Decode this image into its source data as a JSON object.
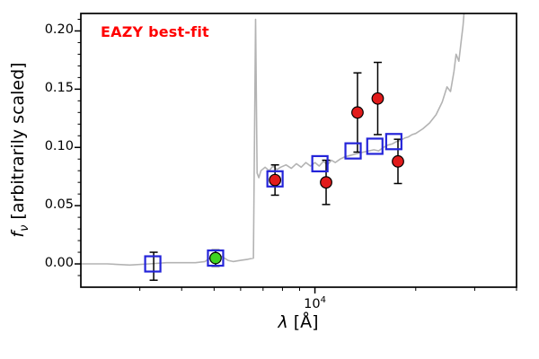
{
  "figure": {
    "annotation": "EAZY best-fit",
    "annotation_color": "#ff0000",
    "background": "#ffffff"
  },
  "axes": {
    "xlabel_symbol": "λ",
    "xlabel_rest": " [Å]",
    "ylabel_symbol": "f",
    "ylabel_sub": "ν",
    "ylabel_rest": " [arbitrarily scaled]",
    "x_major_tick_base": "10",
    "x_major_tick_exp": "4"
  },
  "chart_data": {
    "type": "line+scatter",
    "title": "",
    "xlabel": "lambda [Angstrom]",
    "ylabel": "f_nu [arbitrarily scaled]",
    "xscale": "log",
    "xlim": [
      2000,
      40000
    ],
    "ylim": [
      -0.02,
      0.215
    ],
    "grid": false,
    "legend": false,
    "y_major_ticks": [
      0,
      0.05,
      0.1,
      0.15,
      0.2
    ],
    "y_minor_step": 0.01,
    "x_major_ticks": [
      10000
    ],
    "x_minor_ticks": [
      3000,
      4000,
      5000,
      6000,
      7000,
      8000,
      9000,
      20000,
      30000,
      40000
    ],
    "series": [
      {
        "name": "EAZY best-fit template",
        "type": "line",
        "color": "#b3b3b3",
        "points": [
          [
            2000,
            0.0
          ],
          [
            2400,
            0.0
          ],
          [
            2800,
            -0.001
          ],
          [
            3200,
            0.0
          ],
          [
            3600,
            0.001
          ],
          [
            4000,
            0.001
          ],
          [
            4400,
            0.001
          ],
          [
            4700,
            0.002
          ],
          [
            4900,
            0.006
          ],
          [
            5100,
            0.008
          ],
          [
            5300,
            0.006
          ],
          [
            5500,
            0.003
          ],
          [
            5700,
            0.002
          ],
          [
            6000,
            0.003
          ],
          [
            6300,
            0.004
          ],
          [
            6550,
            0.005
          ],
          [
            6650,
            0.21
          ],
          [
            6720,
            0.078
          ],
          [
            6800,
            0.074
          ],
          [
            6900,
            0.08
          ],
          [
            7100,
            0.083
          ],
          [
            7300,
            0.08
          ],
          [
            7500,
            0.084
          ],
          [
            7700,
            0.081
          ],
          [
            7900,
            0.083
          ],
          [
            8200,
            0.085
          ],
          [
            8500,
            0.082
          ],
          [
            8800,
            0.086
          ],
          [
            9100,
            0.083
          ],
          [
            9400,
            0.087
          ],
          [
            9700,
            0.084
          ],
          [
            10000,
            0.087
          ],
          [
            10300,
            0.084
          ],
          [
            10600,
            0.088
          ],
          [
            10900,
            0.085
          ],
          [
            11200,
            0.089
          ],
          [
            11500,
            0.087
          ],
          [
            11900,
            0.09
          ],
          [
            12300,
            0.092
          ],
          [
            12700,
            0.093
          ],
          [
            13100,
            0.094
          ],
          [
            13500,
            0.095
          ],
          [
            14000,
            0.096
          ],
          [
            14500,
            0.097
          ],
          [
            15000,
            0.098
          ],
          [
            15500,
            0.097
          ],
          [
            16000,
            0.1
          ],
          [
            16500,
            0.102
          ],
          [
            17000,
            0.103
          ],
          [
            17500,
            0.105
          ],
          [
            18000,
            0.106
          ],
          [
            18500,
            0.108
          ],
          [
            19000,
            0.109
          ],
          [
            19500,
            0.111
          ],
          [
            20000,
            0.112
          ],
          [
            21000,
            0.116
          ],
          [
            22000,
            0.121
          ],
          [
            23000,
            0.128
          ],
          [
            24000,
            0.139
          ],
          [
            24800,
            0.152
          ],
          [
            25400,
            0.148
          ],
          [
            26000,
            0.165
          ],
          [
            26400,
            0.18
          ],
          [
            26900,
            0.174
          ],
          [
            27300,
            0.19
          ],
          [
            27700,
            0.205
          ],
          [
            28100,
            0.228
          ],
          [
            28500,
            0.26
          ]
        ]
      },
      {
        "name": "observed photometry",
        "type": "scatter",
        "marker": "filled-circle",
        "edge_color": "#000000",
        "points": [
          {
            "lambda": 3300,
            "flux": -0.002,
            "err": 0.012,
            "color": "none"
          },
          {
            "lambda": 5050,
            "flux": 0.005,
            "err": 0.007,
            "color": "#3ed321"
          },
          {
            "lambda": 7600,
            "flux": 0.072,
            "err": 0.013,
            "color": "#e11b1b"
          },
          {
            "lambda": 10800,
            "flux": 0.07,
            "err": 0.019,
            "color": "#e11b1b"
          },
          {
            "lambda": 13400,
            "flux": 0.13,
            "err": 0.034,
            "color": "#e11b1b"
          },
          {
            "lambda": 15400,
            "flux": 0.142,
            "err": 0.031,
            "color": "#e11b1b"
          },
          {
            "lambda": 17700,
            "flux": 0.088,
            "err": 0.019,
            "color": "#e11b1b"
          }
        ]
      },
      {
        "name": "model photometry",
        "type": "scatter",
        "marker": "open-square",
        "color": "#2424d9",
        "points": [
          {
            "lambda": 3280,
            "flux": 0.0
          },
          {
            "lambda": 5050,
            "flux": 0.005
          },
          {
            "lambda": 7600,
            "flux": 0.073
          },
          {
            "lambda": 10350,
            "flux": 0.086
          },
          {
            "lambda": 13000,
            "flux": 0.097
          },
          {
            "lambda": 15100,
            "flux": 0.101
          },
          {
            "lambda": 17200,
            "flux": 0.105
          }
        ]
      }
    ]
  }
}
